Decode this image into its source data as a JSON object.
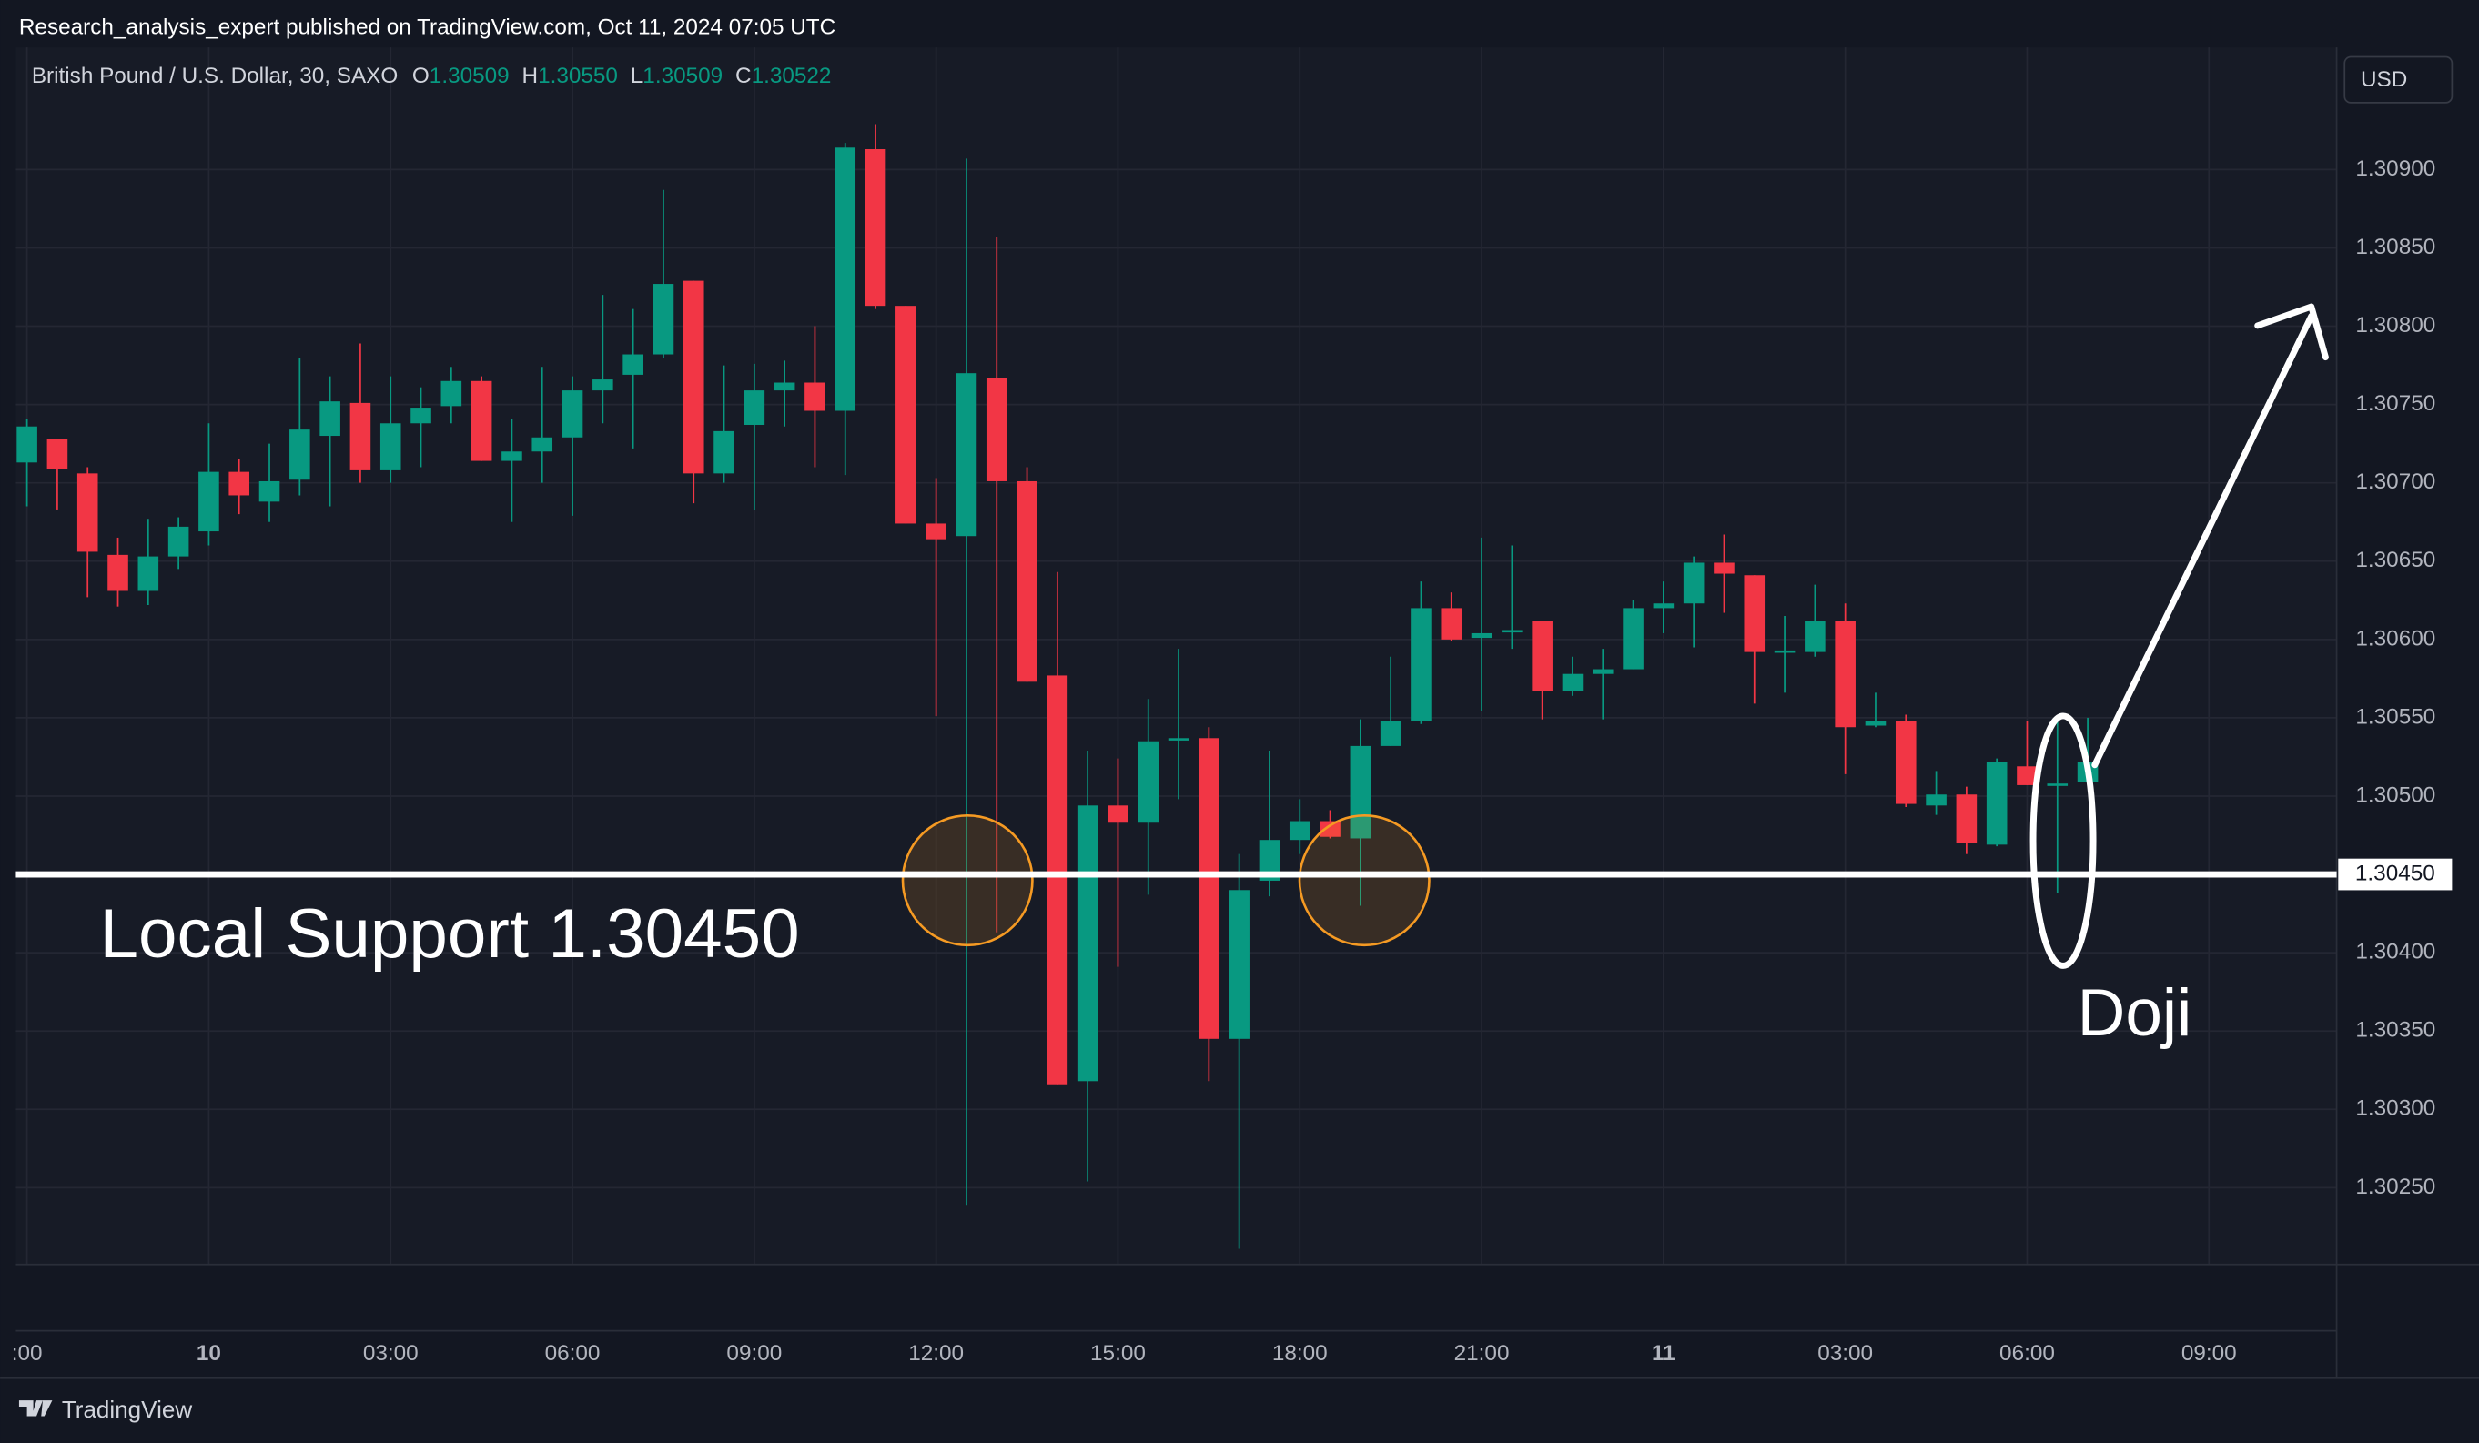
{
  "header": {
    "publisher": "Research_analysis_expert published on TradingView.com, Oct 11, 2024 07:05 UTC",
    "brand": "TradingView"
  },
  "chart_data": {
    "type": "candlestick",
    "symbol": "British Pound / U.S. Dollar, 30, SAXO",
    "ohlc_legend": [
      {
        "key": "O",
        "text": "1.30509"
      },
      {
        "key": "H",
        "text": "1.30550"
      },
      {
        "key": "L",
        "text": "1.30509"
      },
      {
        "key": "C",
        "text": "1.30522"
      }
    ],
    "currency": "USD",
    "categories": [
      ":00",
      null,
      null,
      null,
      null,
      null,
      "10",
      null,
      null,
      null,
      null,
      null,
      "03:00",
      null,
      null,
      null,
      null,
      null,
      "06:00",
      null,
      null,
      null,
      null,
      null,
      "09:00",
      null,
      null,
      null,
      null,
      null,
      "12:00",
      null,
      null,
      null,
      null,
      null,
      "15:00",
      null,
      null,
      null,
      null,
      null,
      "18:00",
      null,
      null,
      null,
      null,
      null,
      "21:00",
      null,
      null,
      null,
      null,
      null,
      "11",
      null,
      null,
      null,
      null,
      null,
      "03:00",
      null,
      null,
      null,
      null,
      null,
      "06:00",
      null,
      null,
      null,
      null,
      null,
      "09:00",
      null,
      null,
      null,
      null
    ],
    "open": [
      1.30713,
      1.30728,
      1.30706,
      1.30654,
      1.30631,
      1.30653,
      1.30669,
      1.30707,
      1.30688,
      1.30702,
      1.3073,
      1.30751,
      1.30708,
      1.30738,
      1.30749,
      1.30765,
      1.30714,
      1.3072,
      1.30729,
      1.30759,
      1.30769,
      1.30782,
      1.30829,
      1.30706,
      1.30737,
      1.30759,
      1.30764,
      1.30746,
      1.30913,
      1.30813,
      1.30674,
      1.30666,
      1.30767,
      1.30701,
      1.30577,
      1.30318,
      1.30494,
      1.30483,
      1.30537,
      1.30537,
      1.30345,
      1.30446,
      1.30472,
      1.30484,
      1.30473,
      1.30532,
      1.30548,
      1.3062,
      1.30601,
      1.30605,
      1.30612,
      1.30567,
      1.30578,
      1.30581,
      1.3062,
      1.30623,
      1.30649,
      1.30641,
      1.30592,
      1.30592,
      1.30612,
      1.30545,
      1.30548,
      1.30494,
      1.30501,
      1.30469,
      1.30519,
      1.30507,
      1.30509,
      null,
      null,
      null,
      null,
      null,
      null,
      null,
      null
    ],
    "high": [
      1.30741,
      1.30728,
      1.3071,
      1.30665,
      1.30677,
      1.30678,
      1.30738,
      1.30715,
      1.30725,
      1.3078,
      1.30768,
      1.30789,
      1.30768,
      1.30761,
      1.30774,
      1.30768,
      1.30741,
      1.30774,
      1.30768,
      1.3082,
      1.30811,
      1.30887,
      1.30829,
      1.30775,
      1.30776,
      1.30778,
      1.308,
      1.30917,
      1.30929,
      1.30813,
      1.30703,
      1.30907,
      1.30857,
      1.3071,
      1.30643,
      1.30529,
      1.30524,
      1.30562,
      1.30594,
      1.30544,
      1.30463,
      1.30529,
      1.30498,
      1.30491,
      1.30549,
      1.30589,
      1.30637,
      1.3063,
      1.30665,
      1.3066,
      1.30612,
      1.30589,
      1.30594,
      1.30625,
      1.30637,
      1.30653,
      1.30667,
      1.30641,
      1.30615,
      1.30635,
      1.30623,
      1.30566,
      1.30552,
      1.30516,
      1.30506,
      1.30524,
      1.30548,
      1.30548,
      1.3055,
      null,
      null,
      null,
      null,
      null,
      null,
      null,
      null
    ],
    "low": [
      1.30685,
      1.30683,
      1.30627,
      1.30621,
      1.30622,
      1.30645,
      1.3066,
      1.3068,
      1.30675,
      1.30692,
      1.30685,
      1.307,
      1.307,
      1.3071,
      1.30738,
      1.30714,
      1.30675,
      1.307,
      1.30679,
      1.30738,
      1.30722,
      1.3078,
      1.30687,
      1.307,
      1.30683,
      1.30736,
      1.3071,
      1.30705,
      1.30811,
      1.30674,
      1.30551,
      1.30239,
      1.30413,
      1.30573,
      1.30316,
      1.30254,
      1.30391,
      1.30437,
      1.30498,
      1.30318,
      1.30211,
      1.30436,
      1.30463,
      1.30473,
      1.3043,
      1.30532,
      1.30546,
      1.30599,
      1.30554,
      1.30594,
      1.30549,
      1.30564,
      1.30549,
      1.30581,
      1.30604,
      1.30595,
      1.30617,
      1.30559,
      1.30566,
      1.30589,
      1.30514,
      1.30544,
      1.30493,
      1.30488,
      1.30463,
      1.30468,
      1.30507,
      1.30438,
      1.30509,
      null,
      null,
      null,
      null,
      null,
      null,
      null,
      null
    ],
    "close": [
      1.30736,
      1.30709,
      1.30656,
      1.30631,
      1.30653,
      1.30672,
      1.30707,
      1.30692,
      1.30701,
      1.30734,
      1.30752,
      1.30708,
      1.30738,
      1.30748,
      1.30765,
      1.30714,
      1.3072,
      1.30729,
      1.30759,
      1.30766,
      1.30782,
      1.30827,
      1.30706,
      1.30733,
      1.30759,
      1.30764,
      1.30746,
      1.30914,
      1.30813,
      1.30674,
      1.30664,
      1.3077,
      1.30701,
      1.30573,
      1.30316,
      1.30494,
      1.30483,
      1.30535,
      1.30537,
      1.30345,
      1.3044,
      1.30472,
      1.30484,
      1.30474,
      1.30532,
      1.30548,
      1.3062,
      1.306,
      1.30604,
      1.30606,
      1.30567,
      1.30578,
      1.30581,
      1.3062,
      1.30623,
      1.30649,
      1.30642,
      1.30592,
      1.30593,
      1.30612,
      1.30544,
      1.30548,
      1.30495,
      1.30501,
      1.3047,
      1.30522,
      1.30507,
      1.30508,
      1.30522,
      null,
      null,
      null,
      null,
      null,
      null,
      null,
      null
    ],
    "up_color": "#089981",
    "down_color": "#f23645",
    "ylim": [
      1.30201,
      1.30978
    ],
    "yticks": [
      {
        "value": 1.309,
        "label": "1.30900"
      },
      {
        "value": 1.3085,
        "label": "1.30850"
      },
      {
        "value": 1.308,
        "label": "1.30800"
      },
      {
        "value": 1.3075,
        "label": "1.30750"
      },
      {
        "value": 1.307,
        "label": "1.30700"
      },
      {
        "value": 1.3065,
        "label": "1.30650"
      },
      {
        "value": 1.306,
        "label": "1.30600"
      },
      {
        "value": 1.3055,
        "label": "1.30550"
      },
      {
        "value": 1.305,
        "label": "1.30500"
      },
      {
        "value": 1.304,
        "label": "1.30400"
      },
      {
        "value": 1.3035,
        "label": "1.30350"
      },
      {
        "value": 1.303,
        "label": "1.30300"
      },
      {
        "value": 1.3025,
        "label": "1.30250"
      }
    ],
    "grid": true,
    "support": {
      "value": 1.3045,
      "label": "1.30450"
    },
    "annotations": [
      "Local Support 1.30450",
      "Doji"
    ]
  }
}
